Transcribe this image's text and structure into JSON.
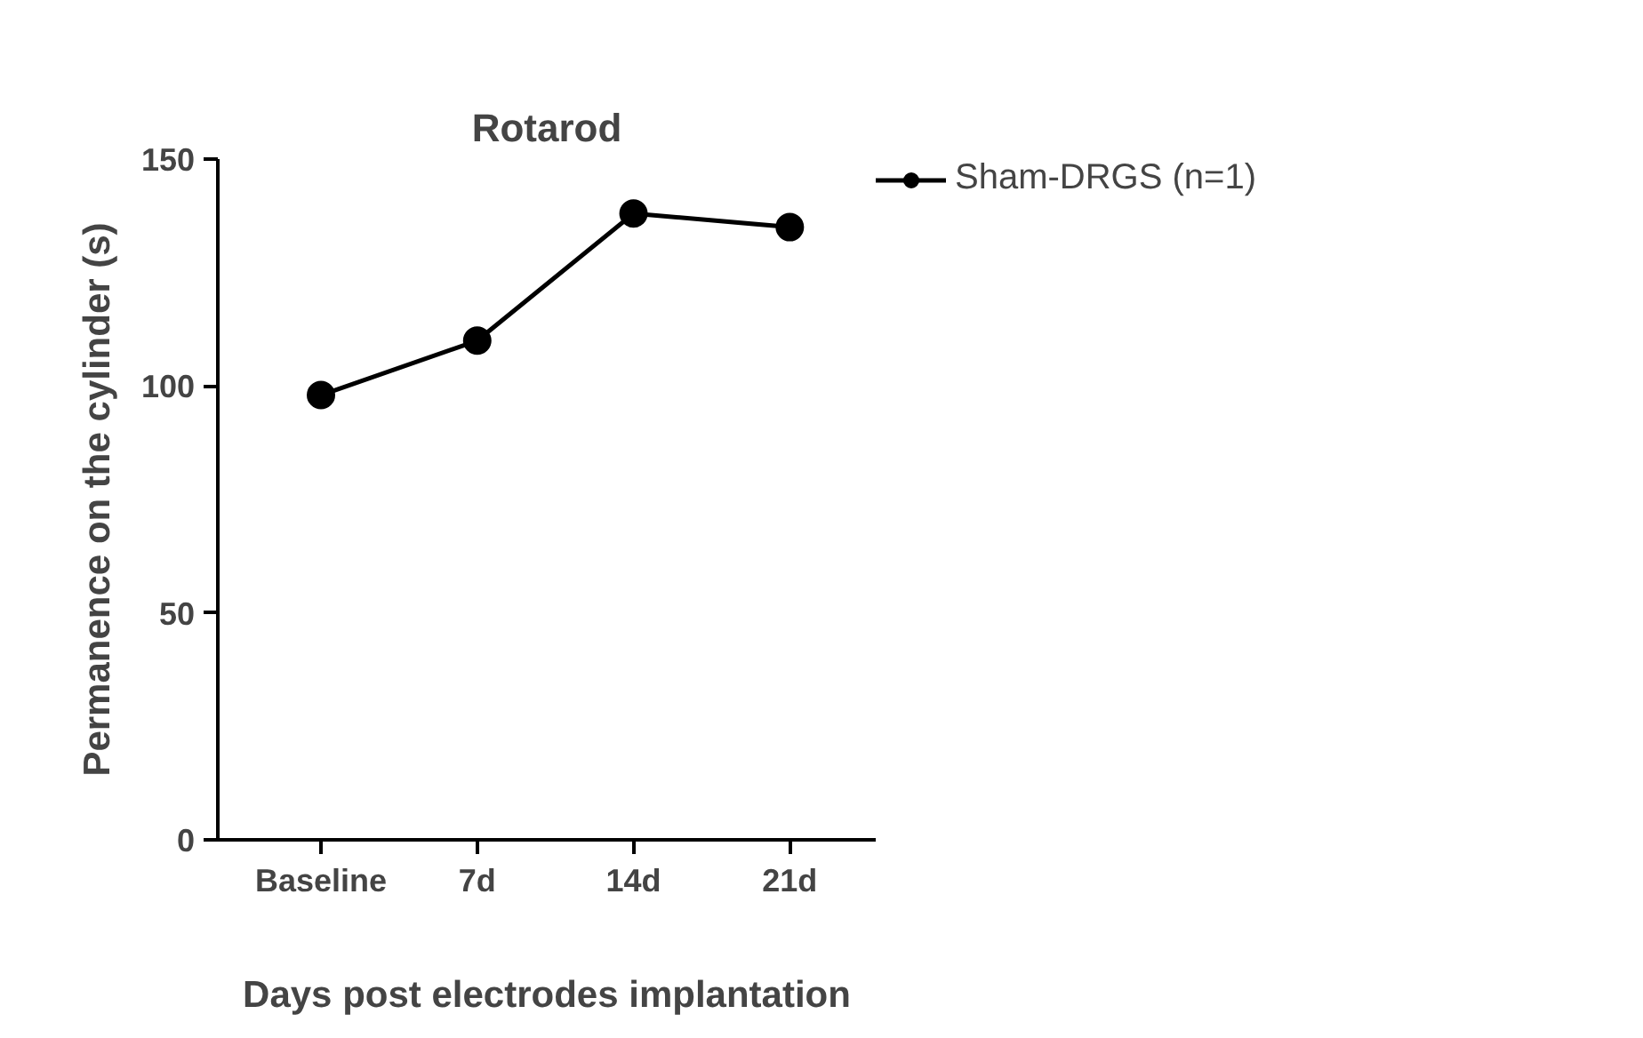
{
  "chart_data": {
    "type": "line",
    "title": "Rotarod",
    "xlabel": "Days post electrodes implantation",
    "ylabel": "Permanence on the cylinder (s)",
    "categories": [
      "Baseline",
      "7d",
      "14d",
      "21d"
    ],
    "series": [
      {
        "name": "Sham-DRGS (n=1)",
        "color": "#000000",
        "values": [
          98,
          110,
          138,
          135
        ]
      }
    ],
    "ylim": [
      0,
      150
    ],
    "yticks": [
      0,
      50,
      100,
      150
    ],
    "marker": "circle",
    "line_style": "solid",
    "legend": "top right",
    "grid": false
  }
}
